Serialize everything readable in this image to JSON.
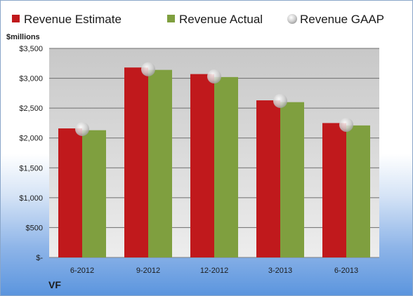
{
  "chart_data": {
    "type": "bar",
    "ylabel": "$millions",
    "company": "VF",
    "categories": [
      "6-2012",
      "9-2012",
      "12-2012",
      "3-2013",
      "6-2013"
    ],
    "series": [
      {
        "name": "Revenue Estimate",
        "kind": "bar",
        "color": "#c0191c",
        "values": [
          2160,
          3180,
          3070,
          2630,
          2250
        ]
      },
      {
        "name": "Revenue Actual",
        "kind": "bar",
        "color": "#7f9f3f",
        "values": [
          2130,
          3140,
          3020,
          2600,
          2210
        ]
      },
      {
        "name": "Revenue GAAP",
        "kind": "marker",
        "color": "#c8c8c8",
        "values": [
          2150,
          3150,
          3030,
          2620,
          2220
        ]
      }
    ],
    "ylim": [
      0,
      3500
    ],
    "yticks": [
      0,
      500,
      1000,
      1500,
      2000,
      2500,
      3000,
      3500
    ],
    "ytick_labels": [
      "$-",
      "$500",
      "$1,000",
      "$1,500",
      "$2,000",
      "$2,500",
      "$3,000",
      "$3,500"
    ],
    "grid": true,
    "legend_position": "top"
  }
}
